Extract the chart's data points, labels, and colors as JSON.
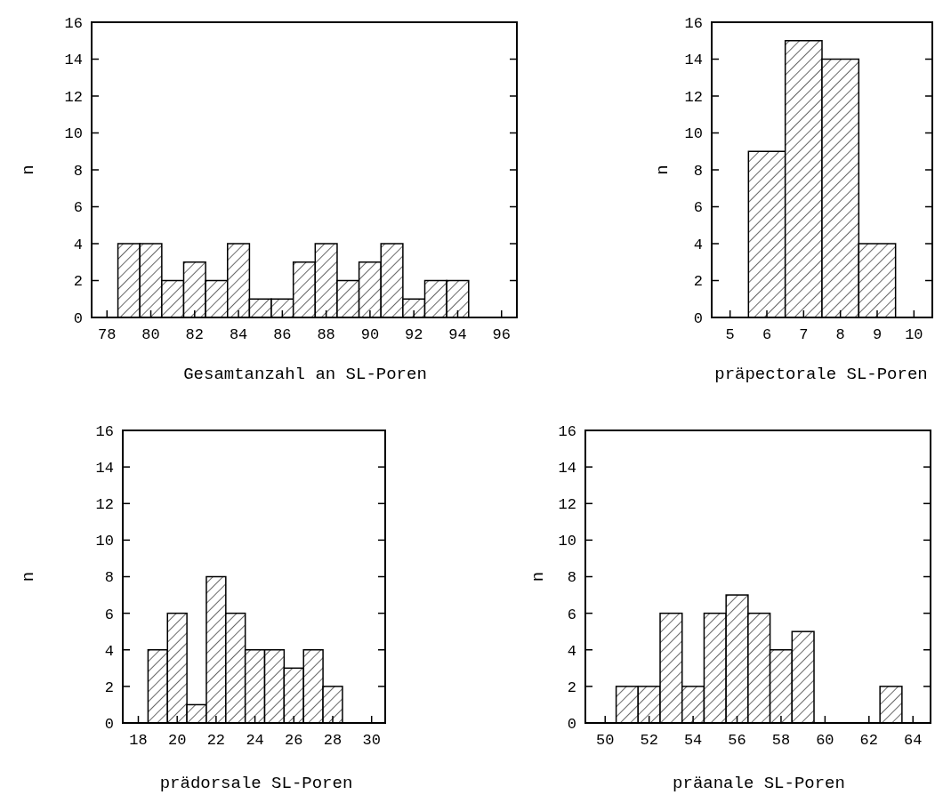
{
  "chart_data": [
    {
      "type": "histogram",
      "xlabel": "Gesamtanzahl an  SL-Poren",
      "ylabel": "n",
      "color": "#000000",
      "bins": [
        78.5,
        79.5,
        80.5,
        81.5,
        82.5,
        83.5,
        84.5,
        85.5,
        86.5,
        87.5,
        88.5,
        89.5,
        90.5,
        91.5,
        92.5,
        93.5,
        94.5
      ],
      "values": [
        4,
        4,
        2,
        3,
        2,
        4,
        1,
        1,
        3,
        4,
        2,
        3,
        4,
        1,
        2,
        2
      ],
      "xlim": [
        77.3,
        96.7
      ],
      "xticks": [
        78,
        80,
        82,
        84,
        86,
        88,
        90,
        92,
        94,
        96
      ],
      "ylim": [
        0,
        16
      ],
      "yticks": [
        0,
        2,
        4,
        6,
        8,
        10,
        12,
        14,
        16
      ]
    },
    {
      "type": "histogram",
      "xlabel": "präpectorale SL-Poren",
      "ylabel": "n",
      "color": "#000000",
      "bins": [
        5.5,
        6.5,
        7.5,
        8.5,
        9.5
      ],
      "values": [
        9,
        15,
        14,
        4
      ],
      "xlim": [
        4.5,
        10.5
      ],
      "xticks": [
        5,
        6,
        7,
        8,
        9,
        10
      ],
      "ylim": [
        0,
        16
      ],
      "yticks": [
        0,
        2,
        4,
        6,
        8,
        10,
        12,
        14,
        16
      ]
    },
    {
      "type": "histogram",
      "xlabel": "prädorsale SL-Poren",
      "ylabel": "n",
      "color": "#000000",
      "bins": [
        18.5,
        19.5,
        20.5,
        21.5,
        22.5,
        23.5,
        24.5,
        25.5,
        26.5,
        27.5,
        28.5
      ],
      "values": [
        4,
        6,
        1,
        8,
        6,
        4,
        4,
        3,
        4,
        2
      ],
      "xlim": [
        17.2,
        30.7
      ],
      "xticks": [
        18,
        20,
        22,
        24,
        26,
        28,
        30
      ],
      "ylim": [
        0,
        16
      ],
      "yticks": [
        0,
        2,
        4,
        6,
        8,
        10,
        12,
        14,
        16
      ]
    },
    {
      "type": "histogram",
      "xlabel": "präanale SL-Poren",
      "ylabel": "n",
      "color": "#000000",
      "bins": [
        50.5,
        51.5,
        52.5,
        53.5,
        54.5,
        55.5,
        56.5,
        57.5,
        58.5,
        59.5,
        60.5,
        61.5,
        62.5,
        63.5
      ],
      "values": [
        2,
        2,
        6,
        2,
        6,
        7,
        6,
        4,
        5,
        0,
        0,
        0,
        2
      ],
      "xlim": [
        49.1,
        64.8
      ],
      "xticks": [
        50,
        52,
        54,
        56,
        58,
        60,
        62,
        64
      ],
      "ylim": [
        0,
        16
      ],
      "yticks": [
        0,
        2,
        4,
        6,
        8,
        10,
        12,
        14,
        16
      ]
    }
  ]
}
